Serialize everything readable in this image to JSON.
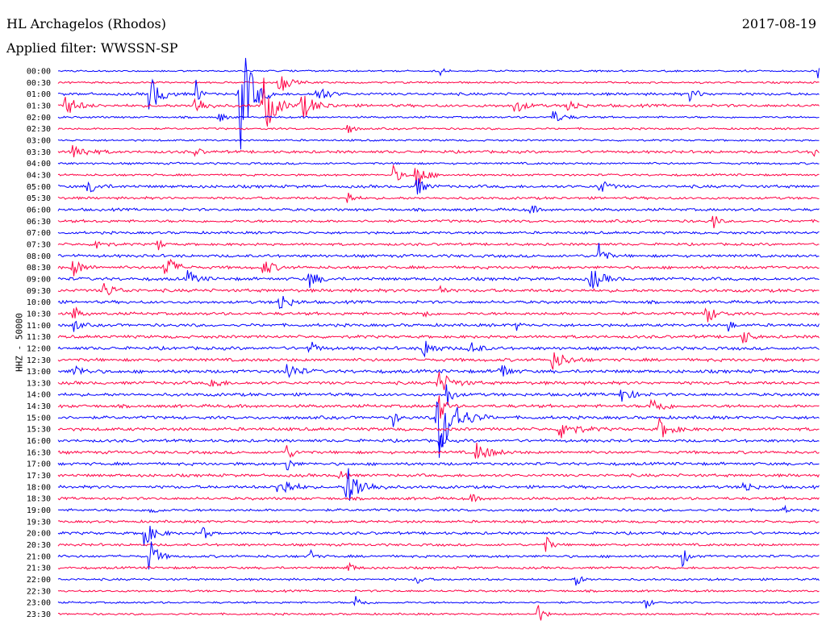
{
  "header": {
    "station": "HL Archagelos (Rhodos)",
    "filter": "Applied filter: WWSSN-SP",
    "date": "2017-08-19",
    "channel": "HHZ - 50000"
  },
  "chart_data": {
    "type": "line",
    "title": "HL Archagelos (Rhodos)",
    "subtitle": "Applied filter: WWSSN-SP",
    "date": "2017-08-19",
    "ylabel": "HHZ - 50000",
    "row_labels": [
      "00:00",
      "00:30",
      "01:00",
      "01:30",
      "02:00",
      "02:30",
      "03:00",
      "03:30",
      "04:00",
      "04:30",
      "05:00",
      "05:30",
      "06:00",
      "06:30",
      "07:00",
      "07:30",
      "08:00",
      "08:30",
      "09:00",
      "09:30",
      "10:00",
      "10:30",
      "11:00",
      "11:30",
      "12:00",
      "12:30",
      "13:00",
      "13:30",
      "14:00",
      "14:30",
      "15:00",
      "15:30",
      "16:00",
      "16:30",
      "17:00",
      "17:30",
      "18:00",
      "18:30",
      "19:00",
      "19:30",
      "20:00",
      "20:30",
      "21:00",
      "21:30",
      "22:00",
      "22:30",
      "23:00",
      "23:30"
    ],
    "colors": [
      "#0000ff",
      "#ff0044"
    ],
    "row_noise": [
      0.9,
      1,
      1.4,
      1.5,
      1,
      1,
      1,
      1.4,
      1.1,
      1.1,
      1.5,
      1.3,
      1.4,
      1.4,
      1.3,
      1.3,
      1.5,
      1.5,
      1.6,
      1.6,
      1.5,
      1.5,
      1.5,
      1.5,
      1.6,
      1.6,
      1.7,
      1.6,
      1.6,
      1.6,
      1.6,
      1.6,
      1.5,
      1.5,
      1.5,
      1.5,
      1.5,
      1.4,
      1.3,
      1.3,
      1.4,
      1.3,
      1.3,
      1.2,
      1.1,
      1.1,
      1,
      1
    ],
    "events": [
      {
        "row": 0,
        "x": 0.5,
        "amp": 10,
        "width": 0.004
      },
      {
        "row": 0,
        "x": 0.998,
        "amp": 12,
        "width": 0.003
      },
      {
        "row": 2,
        "x": 0.12,
        "amp": 25,
        "width": 0.012
      },
      {
        "row": 2,
        "x": 0.18,
        "amp": 30,
        "width": 0.004
      },
      {
        "row": 2,
        "x": 0.24,
        "amp": 80,
        "width": 0.012
      },
      {
        "row": 2,
        "x": 0.34,
        "amp": 14,
        "width": 0.01
      },
      {
        "row": 2,
        "x": 0.83,
        "amp": 10,
        "width": 0.008
      },
      {
        "row": 1,
        "x": 0.29,
        "amp": 16,
        "width": 0.01
      },
      {
        "row": 3,
        "x": 0.01,
        "amp": 14,
        "width": 0.012
      },
      {
        "row": 3,
        "x": 0.18,
        "amp": 14,
        "width": 0.01
      },
      {
        "row": 3,
        "x": 0.27,
        "amp": 40,
        "width": 0.012
      },
      {
        "row": 3,
        "x": 0.32,
        "amp": 16,
        "width": 0.015
      },
      {
        "row": 3,
        "x": 0.6,
        "amp": 10,
        "width": 0.01
      },
      {
        "row": 3,
        "x": 0.67,
        "amp": 12,
        "width": 0.008
      },
      {
        "row": 4,
        "x": 0.21,
        "amp": 10,
        "width": 0.006
      },
      {
        "row": 4,
        "x": 0.65,
        "amp": 8,
        "width": 0.012
      },
      {
        "row": 5,
        "x": 0.38,
        "amp": 8,
        "width": 0.006
      },
      {
        "row": 7,
        "x": 0.02,
        "amp": 10,
        "width": 0.015
      },
      {
        "row": 7,
        "x": 0.18,
        "amp": 8,
        "width": 0.005
      },
      {
        "row": 7,
        "x": 0.99,
        "amp": 12,
        "width": 0.004
      },
      {
        "row": 9,
        "x": 0.44,
        "amp": 12,
        "width": 0.008
      },
      {
        "row": 9,
        "x": 0.47,
        "amp": 18,
        "width": 0.01
      },
      {
        "row": 10,
        "x": 0.04,
        "amp": 10,
        "width": 0.01
      },
      {
        "row": 10,
        "x": 0.47,
        "amp": 14,
        "width": 0.008
      },
      {
        "row": 10,
        "x": 0.71,
        "amp": 10,
        "width": 0.01
      },
      {
        "row": 11,
        "x": 0.38,
        "amp": 10,
        "width": 0.006
      },
      {
        "row": 12,
        "x": 0.62,
        "amp": 14,
        "width": 0.004
      },
      {
        "row": 13,
        "x": 0.86,
        "amp": 16,
        "width": 0.004
      },
      {
        "row": 15,
        "x": 0.05,
        "amp": 10,
        "width": 0.008
      },
      {
        "row": 15,
        "x": 0.13,
        "amp": 14,
        "width": 0.004
      },
      {
        "row": 16,
        "x": 0.71,
        "amp": 22,
        "width": 0.006
      },
      {
        "row": 17,
        "x": 0.02,
        "amp": 12,
        "width": 0.01
      },
      {
        "row": 17,
        "x": 0.14,
        "amp": 20,
        "width": 0.01
      },
      {
        "row": 17,
        "x": 0.27,
        "amp": 12,
        "width": 0.01
      },
      {
        "row": 18,
        "x": 0.17,
        "amp": 10,
        "width": 0.01
      },
      {
        "row": 18,
        "x": 0.33,
        "amp": 12,
        "width": 0.01
      },
      {
        "row": 18,
        "x": 0.7,
        "amp": 16,
        "width": 0.012
      },
      {
        "row": 19,
        "x": 0.06,
        "amp": 10,
        "width": 0.012
      },
      {
        "row": 19,
        "x": 0.5,
        "amp": 12,
        "width": 0.004
      },
      {
        "row": 20,
        "x": 0.29,
        "amp": 14,
        "width": 0.01
      },
      {
        "row": 21,
        "x": 0.02,
        "amp": 12,
        "width": 0.006
      },
      {
        "row": 21,
        "x": 0.48,
        "amp": 12,
        "width": 0.004
      },
      {
        "row": 21,
        "x": 0.85,
        "amp": 14,
        "width": 0.01
      },
      {
        "row": 22,
        "x": 0.02,
        "amp": 10,
        "width": 0.006
      },
      {
        "row": 22,
        "x": 0.6,
        "amp": 10,
        "width": 0.004
      },
      {
        "row": 22,
        "x": 0.88,
        "amp": 12,
        "width": 0.004
      },
      {
        "row": 23,
        "x": 0.9,
        "amp": 14,
        "width": 0.006
      },
      {
        "row": 24,
        "x": 0.33,
        "amp": 10,
        "width": 0.008
      },
      {
        "row": 24,
        "x": 0.48,
        "amp": 14,
        "width": 0.01
      },
      {
        "row": 24,
        "x": 0.54,
        "amp": 10,
        "width": 0.01
      },
      {
        "row": 25,
        "x": 0.65,
        "amp": 12,
        "width": 0.015
      },
      {
        "row": 26,
        "x": 0.02,
        "amp": 10,
        "width": 0.01
      },
      {
        "row": 26,
        "x": 0.3,
        "amp": 12,
        "width": 0.012
      },
      {
        "row": 26,
        "x": 0.58,
        "amp": 14,
        "width": 0.008
      },
      {
        "row": 27,
        "x": 0.2,
        "amp": 12,
        "width": 0.008
      },
      {
        "row": 27,
        "x": 0.5,
        "amp": 14,
        "width": 0.015
      },
      {
        "row": 28,
        "x": 0.51,
        "amp": 18,
        "width": 0.006
      },
      {
        "row": 28,
        "x": 0.74,
        "amp": 12,
        "width": 0.01
      },
      {
        "row": 29,
        "x": 0.5,
        "amp": 24,
        "width": 0.006
      },
      {
        "row": 29,
        "x": 0.78,
        "amp": 12,
        "width": 0.012
      },
      {
        "row": 30,
        "x": 0.44,
        "amp": 14,
        "width": 0.004
      },
      {
        "row": 30,
        "x": 0.5,
        "amp": 55,
        "width": 0.018
      },
      {
        "row": 31,
        "x": 0.66,
        "amp": 14,
        "width": 0.015
      },
      {
        "row": 31,
        "x": 0.79,
        "amp": 14,
        "width": 0.012
      },
      {
        "row": 32,
        "x": 0.5,
        "amp": 16,
        "width": 0.004
      },
      {
        "row": 33,
        "x": 0.3,
        "amp": 10,
        "width": 0.008
      },
      {
        "row": 33,
        "x": 0.55,
        "amp": 12,
        "width": 0.015
      },
      {
        "row": 34,
        "x": 0.3,
        "amp": 10,
        "width": 0.006
      },
      {
        "row": 35,
        "x": 0.37,
        "amp": 24,
        "width": 0.005
      },
      {
        "row": 36,
        "x": 0.29,
        "amp": 18,
        "width": 0.012
      },
      {
        "row": 36,
        "x": 0.38,
        "amp": 26,
        "width": 0.016
      },
      {
        "row": 36,
        "x": 0.9,
        "amp": 10,
        "width": 0.008
      },
      {
        "row": 37,
        "x": 0.54,
        "amp": 8,
        "width": 0.006
      },
      {
        "row": 38,
        "x": 0.12,
        "amp": 10,
        "width": 0.006
      },
      {
        "row": 38,
        "x": 0.95,
        "amp": 12,
        "width": 0.004
      },
      {
        "row": 40,
        "x": 0.11,
        "amp": 20,
        "width": 0.012
      },
      {
        "row": 40,
        "x": 0.19,
        "amp": 10,
        "width": 0.006
      },
      {
        "row": 41,
        "x": 0.64,
        "amp": 12,
        "width": 0.006
      },
      {
        "row": 42,
        "x": 0.12,
        "amp": 26,
        "width": 0.008
      },
      {
        "row": 42,
        "x": 0.33,
        "amp": 14,
        "width": 0.004
      },
      {
        "row": 42,
        "x": 0.82,
        "amp": 14,
        "width": 0.006
      },
      {
        "row": 43,
        "x": 0.38,
        "amp": 10,
        "width": 0.006
      },
      {
        "row": 44,
        "x": 0.47,
        "amp": 8,
        "width": 0.006
      },
      {
        "row": 44,
        "x": 0.68,
        "amp": 10,
        "width": 0.006
      },
      {
        "row": 46,
        "x": 0.39,
        "amp": 10,
        "width": 0.008
      },
      {
        "row": 46,
        "x": 0.77,
        "amp": 10,
        "width": 0.006
      },
      {
        "row": 47,
        "x": 0.63,
        "amp": 14,
        "width": 0.006
      }
    ]
  }
}
